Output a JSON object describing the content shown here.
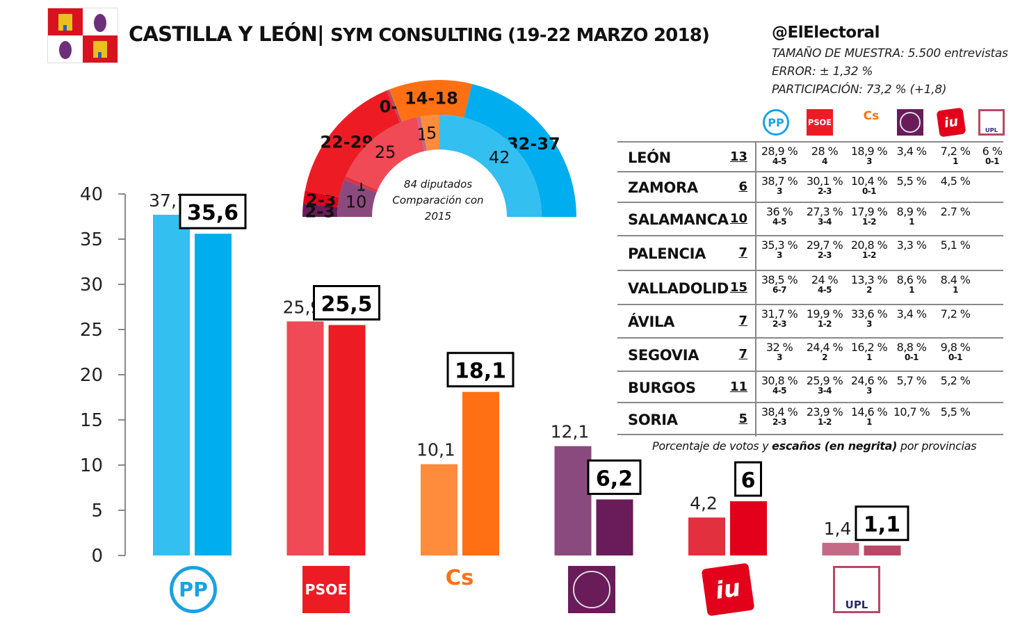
{
  "header": {
    "title": "CASTILLA Y LEÓN|",
    "subtitle": "SYM CONSULTING (19-22 MARZO 2018)",
    "handle": "@ElElectoral",
    "sample": "TAMAÑO DE MUESTRA: 5.500 entrevistas",
    "error": "ERROR: ± 1,32 %",
    "turnout": "PARTICIPACIÓN: 73,2 % (+1,8)"
  },
  "colors": {
    "PP": [
      "#33bff0",
      "#00aeef"
    ],
    "PSOE": [
      "#ef4a55",
      "#ed1c24"
    ],
    "Cs": [
      "#ff8b3d",
      "#ff7014"
    ],
    "Podemos": [
      "#8b4a7e",
      "#6a1b5a"
    ],
    "IU": [
      "#e2303f",
      "#e2001a"
    ],
    "UPL": [
      "#c46a86",
      "#b84865"
    ]
  },
  "logos": [
    {
      "party": "PP",
      "text": "PP",
      "icon": "pp-logo-icon"
    },
    {
      "party": "PSOE",
      "text": "PSOE",
      "icon": "psoe-logo-icon"
    },
    {
      "party": "Cs",
      "text": "Cs",
      "icon": "cs-logo-icon"
    },
    {
      "party": "Podemos",
      "text": "",
      "icon": "podemos-logo-icon"
    },
    {
      "party": "IU",
      "text": "iu",
      "icon": "iu-logo-icon"
    },
    {
      "party": "UPL",
      "text": "UPL",
      "icon": "upl-logo-icon"
    }
  ],
  "chart_data": [
    {
      "type": "bar",
      "categories": [
        "PP",
        "PSOE",
        "Cs",
        "Podemos",
        "IU",
        "UPL"
      ],
      "series": [
        {
          "values": [
            37.7,
            25.9,
            10.1,
            12.1,
            4.2,
            1.4
          ],
          "labels": [
            "37,7",
            "25,9",
            "10,1",
            "12,1",
            "4,2",
            "1,4"
          ]
        },
        {
          "values": [
            35.6,
            25.5,
            18.1,
            6.2,
            6,
            1.1
          ],
          "labels": [
            "35,6",
            "25,5",
            "18,1",
            "6,2",
            "6",
            "1,1"
          ]
        }
      ],
      "ylim": [
        0,
        40
      ],
      "yticks": [
        "0",
        "5",
        "10",
        "15",
        "20",
        "25",
        "30",
        "35",
        "40"
      ],
      "grid": false
    },
    {
      "type": "pie",
      "subtype": "hemicycle",
      "center_text": [
        "84 diputados",
        "Comparación con",
        "2015"
      ],
      "categories": [
        "Podemos",
        "IU",
        "PSOE",
        "UPL",
        "Cs",
        "PP"
      ],
      "outer_ring": {
        "labels": [
          "2-3",
          "2-3",
          "22-29",
          "0-1",
          "14-18",
          "32-37"
        ],
        "values": [
          2.5,
          2.5,
          25.5,
          0.5,
          16,
          34.5
        ]
      },
      "inner_ring": {
        "labels": [
          "10",
          "1",
          "25",
          "1",
          "5",
          "42"
        ],
        "values": [
          10,
          1,
          25,
          1,
          5,
          42
        ]
      }
    },
    {
      "type": "table",
      "columns": [
        "PP",
        "PSOE",
        "Cs",
        "Podemos",
        "IU",
        "UPL"
      ],
      "rows": [
        {
          "province": "LEÓN",
          "seats": "13",
          "votes": [
            "28,9 %",
            "28 %",
            "18,9 %",
            "3,4 %",
            "7,2 %",
            "6 %"
          ],
          "mp": [
            "4-5",
            "4",
            "3",
            "",
            "1",
            "0-1"
          ]
        },
        {
          "province": "ZAMORA",
          "seats": "6",
          "votes": [
            "38,7 %",
            "30,1 %",
            "10,4 %",
            "5,5 %",
            "4,5 %",
            ""
          ],
          "mp": [
            "3",
            "2-3",
            "0-1",
            "",
            "",
            ""
          ]
        },
        {
          "province": "SALAMANCA",
          "seats": "10",
          "votes": [
            "36 %",
            "27,3 %",
            "17,9 %",
            "8,9 %",
            "2.7 %",
            ""
          ],
          "mp": [
            "4-5",
            "3-4",
            "1-2",
            "1",
            "",
            ""
          ]
        },
        {
          "province": "PALENCIA",
          "seats": "7",
          "votes": [
            "35,3 %",
            "29,7 %",
            "20,8 %",
            "3,3 %",
            "5,1 %",
            ""
          ],
          "mp": [
            "3",
            "2-3",
            "1-2",
            "",
            "",
            ""
          ]
        },
        {
          "province": "VALLADOLID",
          "seats": "15",
          "votes": [
            "38,5 %",
            "24 %",
            "13,3 %",
            "8,6 %",
            "8.4 %",
            ""
          ],
          "mp": [
            "6-7",
            "4-5",
            "2",
            "1",
            "1",
            ""
          ]
        },
        {
          "province": "ÁVILA",
          "seats": "7",
          "votes": [
            "31,7 %",
            "19,9 %",
            "33,6 %",
            "3,4 %",
            "7,2 %",
            ""
          ],
          "mp": [
            "2-3",
            "1-2",
            "3",
            "",
            "",
            ""
          ]
        },
        {
          "province": "SEGOVIA",
          "seats": "7",
          "votes": [
            "32 %",
            "24,4 %",
            "16,2 %",
            "8,8 %",
            "9,8 %",
            ""
          ],
          "mp": [
            "3",
            "2",
            "1",
            "0-1",
            "0-1",
            ""
          ]
        },
        {
          "province": "BURGOS",
          "seats": "11",
          "votes": [
            "30,8 %",
            "25,9 %",
            "24,6 %",
            "5,7 %",
            "5,2 %",
            ""
          ],
          "mp": [
            "4-5",
            "3-4",
            "3",
            "",
            "",
            ""
          ]
        },
        {
          "province": "SORIA",
          "seats": "5",
          "votes": [
            "38,4 %",
            "23,9 %",
            "14,6 %",
            "10,7 %",
            "5,5 %",
            ""
          ],
          "mp": [
            "2-3",
            "1-2",
            "1",
            "",
            "",
            ""
          ]
        }
      ],
      "footnote_pre": "Porcentaje de votos y ",
      "footnote_bold": "escaños (en negrita)",
      "footnote_post": " por provincias"
    }
  ]
}
